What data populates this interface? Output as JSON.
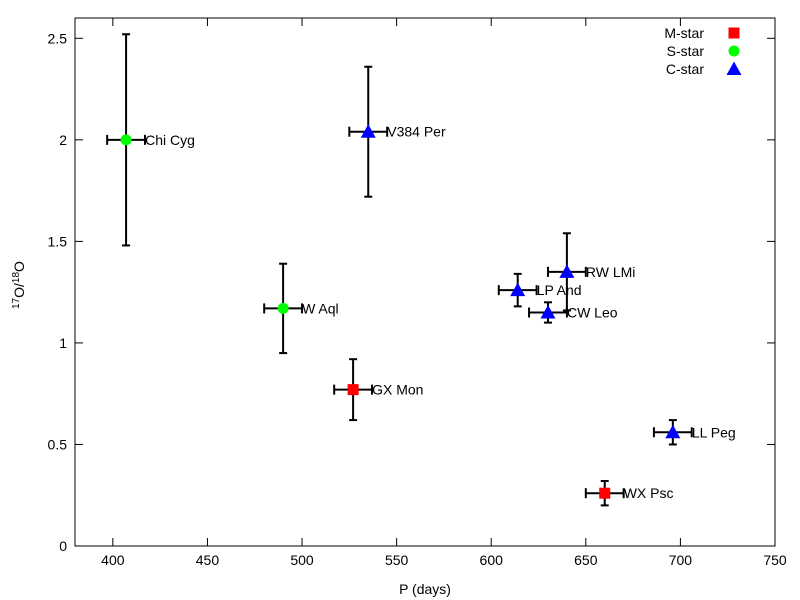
{
  "chart_data": {
    "type": "scatter",
    "title": "",
    "xlabel": "P (days)",
    "ylabel": {
      "base": "O",
      "sup1": "17",
      "mid": "O/",
      "sup2": "18"
    },
    "xlim": [
      380,
      750
    ],
    "ylim": [
      0,
      2.6
    ],
    "xticks": [
      400,
      450,
      500,
      550,
      600,
      650,
      700,
      750
    ],
    "yticks": [
      0,
      0.5,
      1,
      1.5,
      2,
      2.5
    ],
    "ytick_labels": [
      "0",
      "0.5",
      "1",
      "1.5",
      "2",
      "2.5"
    ],
    "legend_position": "top-right",
    "series": [
      {
        "name": "M-star",
        "marker": "square",
        "color": "#ff0000",
        "points": [
          {
            "label": "GX Mon",
            "x": 527,
            "y": 0.77,
            "xerr": 10,
            "yerr": 0.15
          },
          {
            "label": "WX Psc",
            "x": 660,
            "y": 0.26,
            "xerr": 10,
            "yerr": 0.06
          }
        ]
      },
      {
        "name": "S-star",
        "marker": "circle",
        "color": "#00ff00",
        "points": [
          {
            "label": "Chi Cyg",
            "x": 407,
            "y": 2.0,
            "xerr": 10,
            "yerr": 0.52
          },
          {
            "label": "W Aql",
            "x": 490,
            "y": 1.17,
            "xerr": 10,
            "yerr": 0.22
          }
        ]
      },
      {
        "name": "C-star",
        "marker": "triangle",
        "color": "#0000ff",
        "points": [
          {
            "label": "V384 Per",
            "x": 535,
            "y": 2.04,
            "xerr": 10,
            "yerr": 0.32
          },
          {
            "label": "LP And",
            "x": 614,
            "y": 1.26,
            "xerr": 10,
            "yerr": 0.08
          },
          {
            "label": "RW LMi",
            "x": 640,
            "y": 1.35,
            "xerr": 10,
            "yerr": 0.19
          },
          {
            "label": "CW Leo",
            "x": 630,
            "y": 1.15,
            "xerr": 10,
            "yerr": 0.05
          },
          {
            "label": "LL Peg",
            "x": 696,
            "y": 0.56,
            "xerr": 10,
            "yerr": 0.06
          }
        ]
      }
    ]
  }
}
